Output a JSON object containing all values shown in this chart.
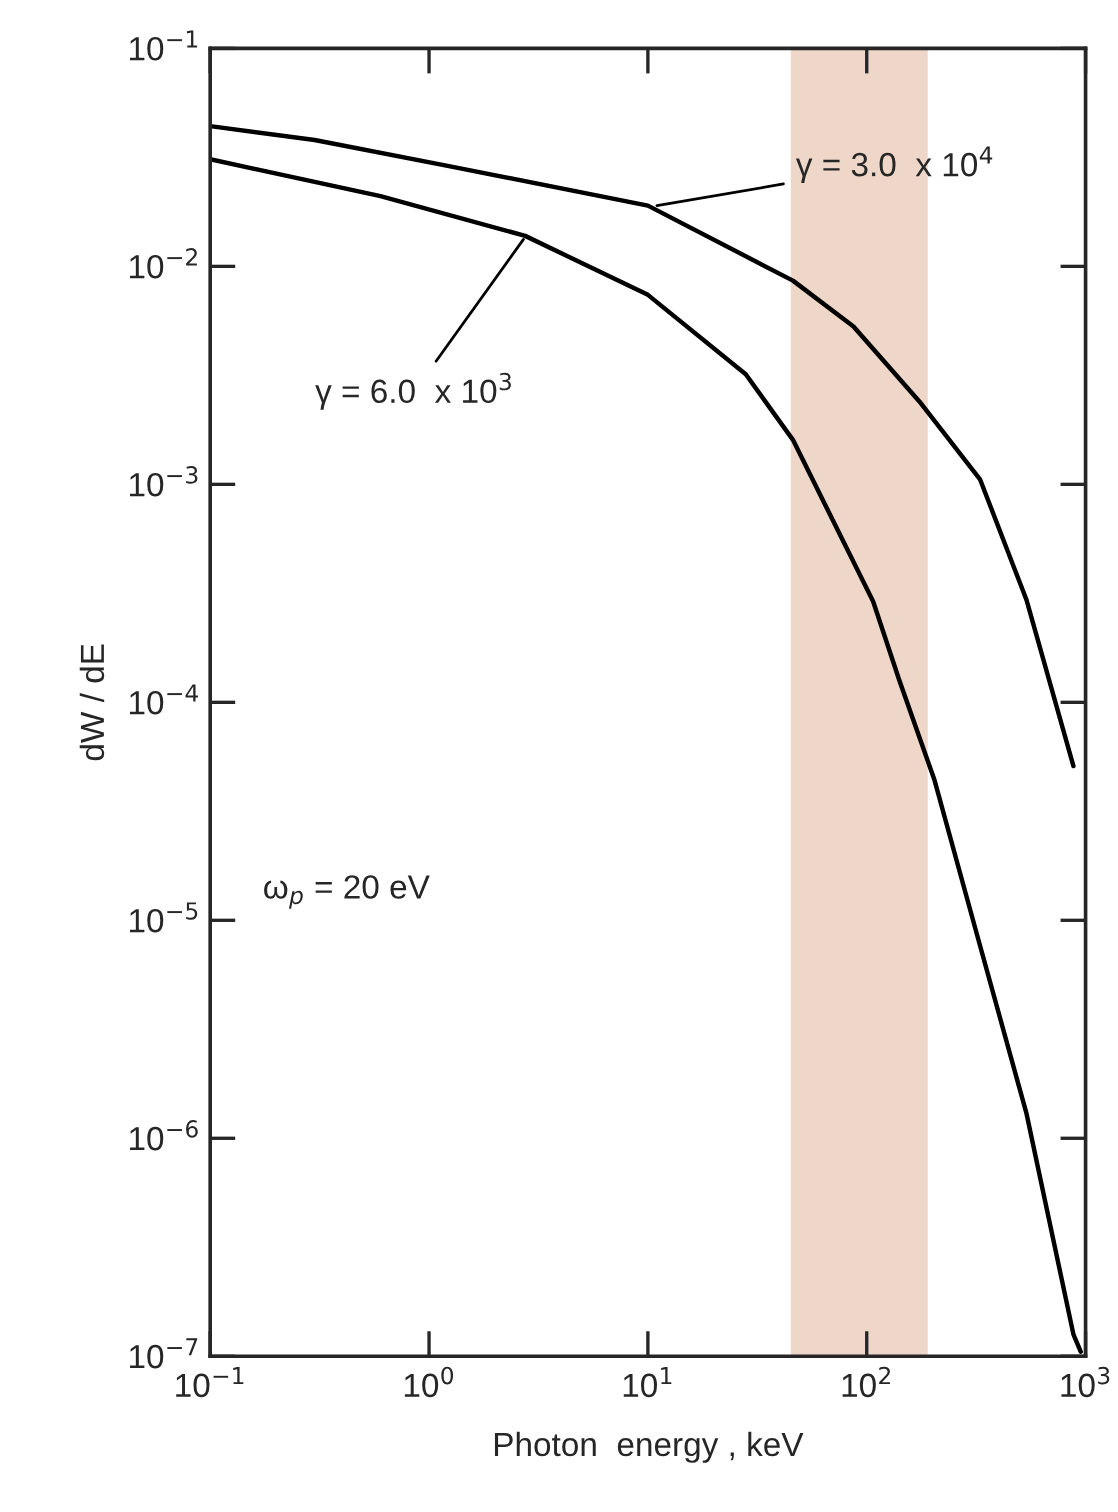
{
  "chart_data": {
    "type": "line",
    "xlabel": "Photon  energy , keV",
    "ylabel": "dW / dE",
    "log": "xy",
    "grid": false,
    "legend": false,
    "marker": "none",
    "line_style": "solid",
    "xlim": [
      0.1,
      1000
    ],
    "ylim": [
      1e-07,
      0.1
    ],
    "xticks": [
      {
        "value": 0.1,
        "label": "10$^{−1}$"
      },
      {
        "value": 1,
        "label": "10$^{0}$"
      },
      {
        "value": 10,
        "label": "10$^{1}$"
      },
      {
        "value": 100,
        "label": "10$^{2}$"
      },
      {
        "value": 1000,
        "label": "10$^{3}$"
      }
    ],
    "yticks": [
      {
        "value": 1e-07,
        "label": "10$^{−7}$"
      },
      {
        "value": 1e-06,
        "label": "10$^{−6}$"
      },
      {
        "value": 1e-05,
        "label": "10$^{−5}$"
      },
      {
        "value": 0.0001,
        "label": "10$^{−4}$"
      },
      {
        "value": 0.001,
        "label": "10$^{−3}$"
      },
      {
        "value": 0.01,
        "label": "10$^{−2}$"
      },
      {
        "value": 0.1,
        "label": "10$^{−1}$"
      }
    ],
    "series": [
      {
        "color": "#000000",
        "x": [
          0.1,
          0.3,
          1.2,
          10,
          46,
          87,
          174,
          330,
          537,
          880
        ],
        "values": [
          0.044,
          0.038,
          0.029,
          0.019,
          0.0086,
          0.0053,
          0.0024,
          0.00105,
          0.000295,
          5.1e-05
        ]
      },
      {
        "color": "#000000",
        "x": [
          0.1,
          0.6,
          2.75,
          10,
          28,
          46,
          107,
          141,
          204,
          330,
          537,
          880,
          950
        ],
        "values": [
          0.031,
          0.021,
          0.0138,
          0.0074,
          0.0032,
          0.0016,
          0.00029,
          0.000126,
          4.4e-05,
          7.6e-06,
          1.3e-06,
          1.26e-07,
          1.05e-07
        ]
      }
    ],
    "bands": [
      {
        "axis": "x",
        "from": 45,
        "to": 190,
        "color": "#eed6c8"
      }
    ],
    "annotations": [
      {
        "text": "γ = 3.0  x 10$^{4}$",
        "x": 11,
        "y": 0.019
      },
      {
        "text": "γ = 6.0  x 10$^{3}$",
        "x": 2.7,
        "y": 0.0133
      },
      "ω$_{p}$ = 20 eV"
    ]
  }
}
